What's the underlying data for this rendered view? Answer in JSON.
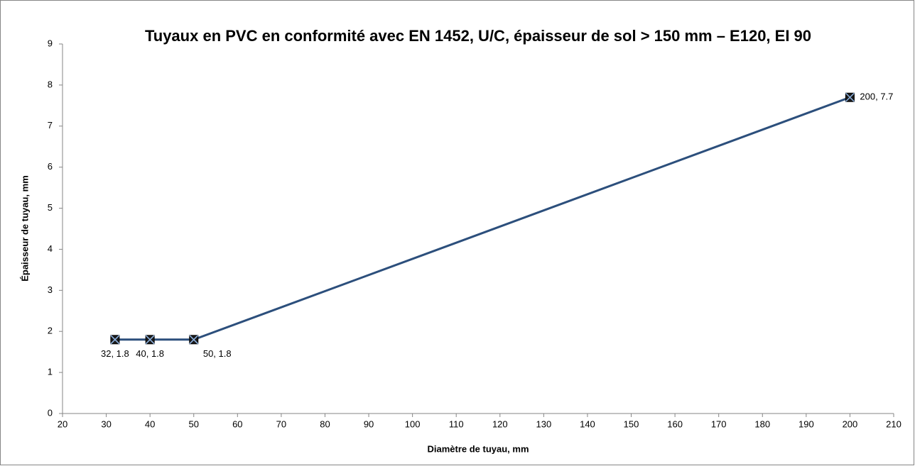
{
  "chart_data": {
    "type": "line",
    "title": "Tuyaux en PVC en conformité avec EN 1452, U/C, épaisseur de sol > 150 mm – E120, EI 90",
    "xlabel": "Diamètre de tuyau, mm",
    "ylabel": "Épaisseur de tuyau, mm",
    "series": [
      {
        "color": "#2c4f7c",
        "x": [
          32,
          40,
          50,
          200
        ],
        "values": [
          1.8,
          1.8,
          1.8,
          7.7
        ],
        "value_labels": [
          "32, 1.8",
          "40, 1.8",
          "50, 1.8",
          "200, 7.7"
        ]
      }
    ],
    "xlim": [
      20,
      210
    ],
    "xticks": [
      20,
      30,
      40,
      50,
      60,
      70,
      80,
      90,
      100,
      110,
      120,
      130,
      140,
      150,
      160,
      170,
      180,
      190,
      200,
      210
    ],
    "ylim": [
      0,
      9
    ],
    "yticks": [
      0,
      1,
      2,
      3,
      4,
      5,
      6,
      7,
      8,
      9
    ]
  }
}
